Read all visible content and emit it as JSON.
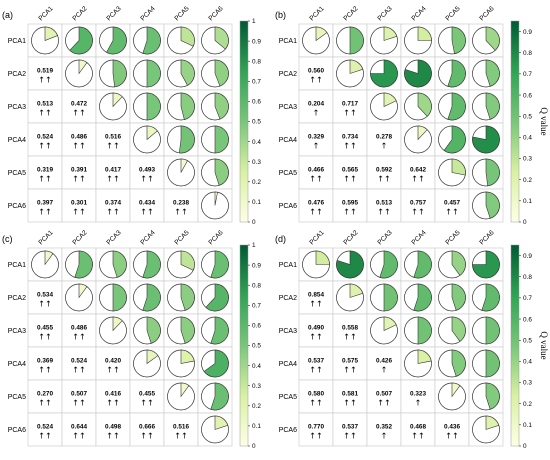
{
  "colors": {
    "low": "#ffffe5",
    "mid": "#78c679",
    "high": "#006837",
    "grid": "#c8c8c8"
  },
  "chart_data": [
    {
      "type": "heatmap",
      "panel_label": "(a)",
      "variables": [
        "PCA1",
        "PCA2",
        "PCA3",
        "PCA4",
        "PCA5",
        "PCA6"
      ],
      "colorbar": {
        "title": "",
        "ticks": [
          "0",
          "0.1",
          "0.2",
          "0.3",
          "0.4",
          "0.5",
          "0.6",
          "0.7",
          "0.8",
          "0.9",
          "1"
        ],
        "range": [
          0,
          1
        ]
      },
      "upper_q": [
        [
          0.19,
          0.62,
          0.58,
          0.55,
          0.32,
          0.36
        ],
        [
          0,
          0.1,
          0.48,
          0.5,
          0.42,
          0.44
        ],
        [
          0,
          0,
          0.12,
          0.5,
          0.46,
          0.44
        ],
        [
          0,
          0,
          0,
          0.14,
          0.52,
          0.5
        ],
        [
          0,
          0,
          0,
          0,
          0.08,
          0.45
        ],
        [
          0,
          0,
          0,
          0,
          0,
          0.03
        ]
      ],
      "lower_values": [
        [
          "",
          "",
          "",
          "",
          "",
          ""
        ],
        [
          "0.519",
          "",
          "",
          "",
          "",
          ""
        ],
        [
          "0.513",
          "0.472",
          "",
          "",
          "",
          ""
        ],
        [
          "0.524",
          "0.486",
          "0.516",
          "",
          "",
          ""
        ],
        [
          "0.319",
          "0.391",
          "0.417",
          "0.493",
          "",
          ""
        ],
        [
          "0.397",
          "0.301",
          "0.374",
          "0.434",
          "0.238",
          ""
        ]
      ],
      "lower_arrows": [
        [
          "",
          "",
          "",
          "",
          "",
          ""
        ],
        [
          "↑↑",
          "",
          "",
          "",
          "",
          ""
        ],
        [
          "↑↑",
          "↑↑",
          "",
          "",
          "",
          ""
        ],
        [
          "↑↑",
          "↑↑",
          "↑↑",
          "",
          "",
          ""
        ],
        [
          "↑↑",
          "↑↑",
          "↑↑",
          "↑↑",
          "",
          ""
        ],
        [
          "↑↑",
          "↑↑",
          "↑↑",
          "↑↑",
          "↑↑",
          ""
        ]
      ]
    },
    {
      "type": "heatmap",
      "panel_label": "(b)",
      "variables": [
        "PCA1",
        "PCA2",
        "PCA3",
        "PCA4",
        "PCA5",
        "PCA6"
      ],
      "colorbar": {
        "title": "Q value",
        "ticks": [
          "0",
          "0.1",
          "0.2",
          "0.3",
          "0.4",
          "0.5",
          "0.6",
          "0.7",
          "0.8",
          "0.9"
        ],
        "range": [
          0,
          0.95
        ]
      },
      "upper_q": [
        [
          0.15,
          0.5,
          0.2,
          0.25,
          0.47,
          0.38
        ],
        [
          0,
          0.2,
          0.75,
          0.8,
          0.55,
          0.45
        ],
        [
          0,
          0,
          0.18,
          0.38,
          0.55,
          0.45
        ],
        [
          0,
          0,
          0,
          0.12,
          0.6,
          0.78
        ],
        [
          0,
          0,
          0,
          0,
          0.28,
          0.48
        ],
        [
          0,
          0,
          0,
          0,
          0,
          0.45
        ]
      ],
      "lower_values": [
        [
          "",
          "",
          "",
          "",
          "",
          ""
        ],
        [
          "0.560",
          "",
          "",
          "",
          "",
          ""
        ],
        [
          "0.204",
          "0.717",
          "",
          "",
          "",
          ""
        ],
        [
          "0.329",
          "0.734",
          "0.278",
          "",
          "",
          ""
        ],
        [
          "0.466",
          "0.565",
          "0.592",
          "0.642",
          "",
          ""
        ],
        [
          "0.476",
          "0.595",
          "0.513",
          "0.757",
          "0.457",
          ""
        ]
      ],
      "lower_arrows": [
        [
          "",
          "",
          "",
          "",
          "",
          ""
        ],
        [
          "↑↑",
          "",
          "",
          "",
          "",
          ""
        ],
        [
          "↑",
          "↑↑",
          "",
          "",
          "",
          ""
        ],
        [
          "↑",
          "↑↑",
          "↑",
          "",
          "",
          ""
        ],
        [
          "↑↑",
          "↑↑",
          "↑↑",
          "↑↑",
          "",
          ""
        ],
        [
          "↑↑",
          "↑↑",
          "↑↑",
          "↑↑",
          "↑↑",
          ""
        ]
      ]
    },
    {
      "type": "heatmap",
      "panel_label": "(c)",
      "variables": [
        "PCA1",
        "PCA2",
        "PCA3",
        "PCA4",
        "PCA5",
        "PCA6"
      ],
      "colorbar": {
        "title": "",
        "ticks": [
          "0",
          "0.1",
          "0.2",
          "0.3",
          "0.4",
          "0.5",
          "0.6",
          "0.7",
          "0.8",
          "0.9",
          "1"
        ],
        "range": [
          0,
          1
        ]
      },
      "upper_q": [
        [
          0.1,
          0.55,
          0.45,
          0.55,
          0.32,
          0.55
        ],
        [
          0,
          0.1,
          0.5,
          0.55,
          0.45,
          0.62
        ],
        [
          0,
          0,
          0.12,
          0.45,
          0.45,
          0.55
        ],
        [
          0,
          0,
          0,
          0.15,
          0.22,
          0.65
        ],
        [
          0,
          0,
          0,
          0,
          0.1,
          0.55
        ],
        [
          0,
          0,
          0,
          0,
          0,
          0.2
        ]
      ],
      "lower_values": [
        [
          "",
          "",
          "",
          "",
          "",
          ""
        ],
        [
          "0.534",
          "",
          "",
          "",
          "",
          ""
        ],
        [
          "0.455",
          "0.486",
          "",
          "",
          "",
          ""
        ],
        [
          "0.369",
          "0.524",
          "0.420",
          "",
          "",
          ""
        ],
        [
          "0.270",
          "0.507",
          "0.416",
          "0.455",
          "",
          ""
        ],
        [
          "0.524",
          "0.644",
          "0.498",
          "0.666",
          "0.516",
          ""
        ]
      ],
      "lower_arrows": [
        [
          "",
          "",
          "",
          "",
          "",
          ""
        ],
        [
          "↑↑",
          "",
          "",
          "",
          "",
          ""
        ],
        [
          "↑↑",
          "↑↑",
          "",
          "",
          "",
          ""
        ],
        [
          "↑↑",
          "↑↑",
          "↑↑",
          "",
          "",
          ""
        ],
        [
          "↑↑",
          "↑↑",
          "↑↑",
          "↑↑",
          "",
          ""
        ],
        [
          "↑↑",
          "↑↑",
          "↑↑",
          "↑↑",
          "↑↑",
          ""
        ]
      ]
    },
    {
      "type": "heatmap",
      "panel_label": "(d)",
      "variables": [
        "PCA1",
        "PCA2",
        "PCA3",
        "PCA4",
        "PCA5",
        "PCA6"
      ],
      "colorbar": {
        "title": "Q value",
        "ticks": [
          "0",
          "0.1",
          "0.2",
          "0.3",
          "0.4",
          "0.5",
          "0.6",
          "0.7",
          "0.8",
          "0.9"
        ],
        "range": [
          0,
          0.95
        ]
      },
      "upper_q": [
        [
          0.25,
          0.8,
          0.55,
          0.55,
          0.4,
          0.75
        ],
        [
          0,
          0.2,
          0.5,
          0.55,
          0.45,
          0.55
        ],
        [
          0,
          0,
          0.18,
          0.5,
          0.4,
          0.5
        ],
        [
          0,
          0,
          0,
          0.22,
          0.45,
          0.5
        ],
        [
          0,
          0,
          0,
          0,
          0.1,
          0.45
        ],
        [
          0,
          0,
          0,
          0,
          0,
          0.2
        ]
      ],
      "lower_values": [
        [
          "",
          "",
          "",
          "",
          "",
          ""
        ],
        [
          "0.854",
          "",
          "",
          "",
          "",
          ""
        ],
        [
          "0.490",
          "0.558",
          "",
          "",
          "",
          ""
        ],
        [
          "0.537",
          "0.575",
          "0.426",
          "",
          "",
          ""
        ],
        [
          "0.580",
          "0.581",
          "0.507",
          "0.323",
          "",
          ""
        ],
        [
          "0.770",
          "0.537",
          "0.352",
          "0.468",
          "0.436",
          ""
        ]
      ],
      "lower_arrows": [
        [
          "",
          "",
          "",
          "",
          "",
          ""
        ],
        [
          "↑↑",
          "",
          "",
          "",
          "",
          ""
        ],
        [
          "↑↑",
          "↑↑",
          "",
          "",
          "",
          ""
        ],
        [
          "↑↑",
          "↑↑",
          "↑",
          "",
          "",
          ""
        ],
        [
          "↑↑",
          "↑↑",
          "↑↑",
          "↑",
          "",
          ""
        ],
        [
          "↑↑",
          "↑↑",
          "↑",
          "↑↑",
          "↑↑",
          ""
        ]
      ]
    }
  ]
}
